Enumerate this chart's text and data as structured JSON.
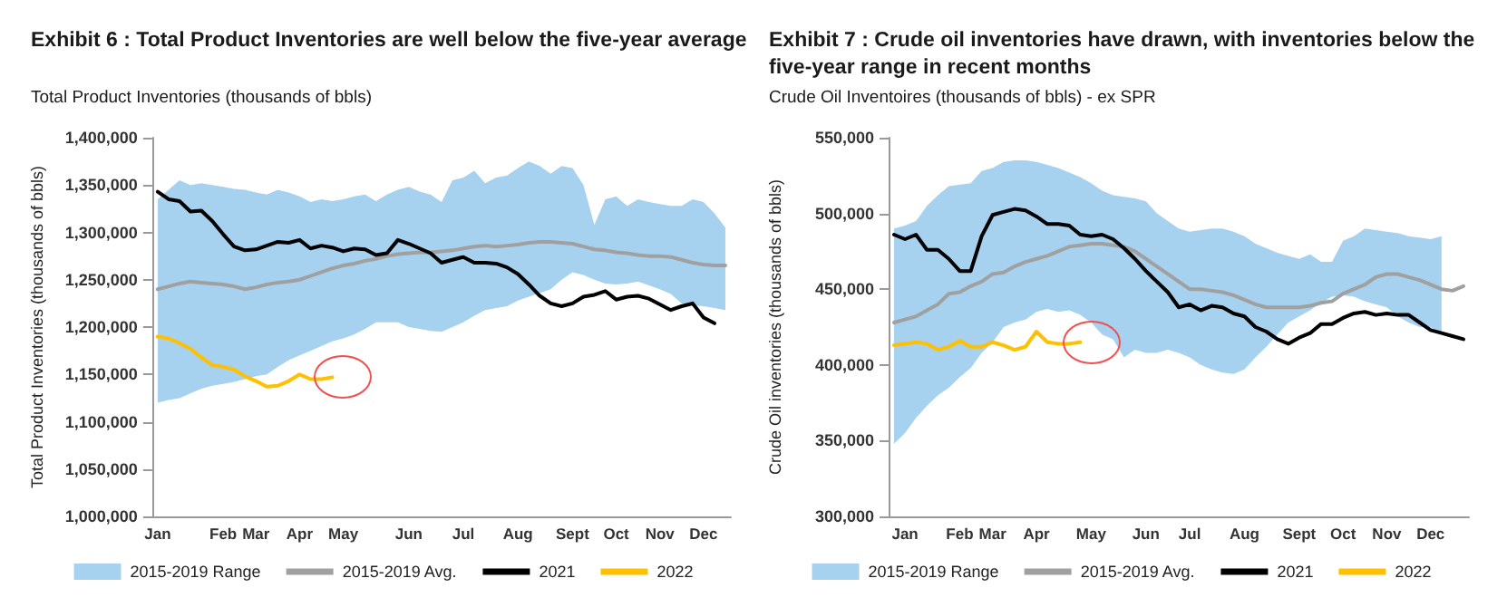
{
  "chart_data": [
    {
      "type": "line",
      "title": "Exhibit 6 : Total Product Inventories are well below the five-year average",
      "subtitle": "Total Product Inventories (thousands of bbls)",
      "ylabel": "Total Product Inventories (thousands of bbls)",
      "categories": [
        "Jan",
        null,
        null,
        null,
        null,
        null,
        "Feb",
        null,
        null,
        "Mar",
        null,
        null,
        null,
        "Apr",
        null,
        null,
        null,
        "May",
        null,
        null,
        null,
        null,
        null,
        "Jun",
        null,
        null,
        null,
        null,
        "Jul",
        null,
        null,
        null,
        null,
        "Aug",
        null,
        null,
        null,
        null,
        "Sept",
        null,
        null,
        null,
        "Oct",
        null,
        null,
        null,
        "Nov",
        null,
        null,
        null,
        "Dec",
        null,
        null
      ],
      "ylim": [
        1000000,
        1400000
      ],
      "yticks": [
        {
          "value": 1000000,
          "label": "1,000,000"
        },
        {
          "value": 1050000,
          "label": "1,050,000"
        },
        {
          "value": 1100000,
          "label": "1,100,000"
        },
        {
          "value": 1150000,
          "label": "1,150,000"
        },
        {
          "value": 1200000,
          "label": "1,200,000"
        },
        {
          "value": 1250000,
          "label": "1,250,000"
        },
        {
          "value": 1300000,
          "label": "1,300,000"
        },
        {
          "value": 1350000,
          "label": "1,350,000"
        },
        {
          "value": 1400000,
          "label": "1,400,000"
        }
      ],
      "grid": false,
      "legend": "bottom",
      "marker": "none",
      "line_style": "solid",
      "series": [
        {
          "name": "2015-2019 Range",
          "type": "area",
          "color": "#a6d2f0",
          "values": [
            null,
            null,
            null,
            null,
            null,
            null,
            null,
            null,
            null,
            null,
            null,
            null,
            null,
            null,
            null,
            null,
            null,
            null,
            null,
            null,
            null,
            null,
            null,
            null,
            null,
            null,
            null,
            null,
            null,
            null,
            null,
            null,
            null,
            null,
            null,
            null,
            null,
            null,
            null,
            null,
            null,
            null,
            null,
            null,
            null,
            null,
            null,
            null,
            null,
            null,
            null,
            null,
            null
          ],
          "lower": [
            1120000,
            1123000,
            1125000,
            1130000,
            1135000,
            1138000,
            1140000,
            1142000,
            1145000,
            1148000,
            1150000,
            1158000,
            1165000,
            1170000,
            1175000,
            1180000,
            1185000,
            1188000,
            1192000,
            1198000,
            1205000,
            1205000,
            1205000,
            1200000,
            1198000,
            1196000,
            1195000,
            1200000,
            1205000,
            1212000,
            1218000,
            1220000,
            1222000,
            1228000,
            1232000,
            1236000,
            1240000,
            1250000,
            1258000,
            1255000,
            1250000,
            1246000,
            1245000,
            1246000,
            1248000,
            1244000,
            1240000,
            1235000,
            1225000,
            1223000,
            1222000,
            1220000,
            1218000
          ],
          "upper": [
            1335000,
            1345000,
            1355000,
            1350000,
            1352000,
            1350000,
            1348000,
            1346000,
            1345000,
            1342000,
            1340000,
            1345000,
            1342000,
            1338000,
            1332000,
            1335000,
            1333000,
            1335000,
            1338000,
            1340000,
            1333000,
            1340000,
            1345000,
            1348000,
            1343000,
            1340000,
            1332000,
            1355000,
            1358000,
            1365000,
            1352000,
            1358000,
            1360000,
            1368000,
            1375000,
            1370000,
            1362000,
            1370000,
            1368000,
            1350000,
            1308000,
            1335000,
            1338000,
            1328000,
            1335000,
            1332000,
            1330000,
            1328000,
            1328000,
            1335000,
            1332000,
            1320000,
            1305000
          ]
        },
        {
          "name": "2015-2019 Avg.",
          "color": "#a0a0a0",
          "values": [
            1240000,
            1243000,
            1246000,
            1248000,
            1247000,
            1246000,
            1245000,
            1243000,
            1240000,
            1242000,
            1245000,
            1247000,
            1248000,
            1250000,
            1254000,
            1258000,
            1262000,
            1265000,
            1267000,
            1270000,
            1272000,
            1275000,
            1277000,
            1278000,
            1279000,
            1279000,
            1280000,
            1281000,
            1283000,
            1285000,
            1286000,
            1285000,
            1286000,
            1287000,
            1289000,
            1290000,
            1290000,
            1289000,
            1288000,
            1285000,
            1282000,
            1281000,
            1279000,
            1278000,
            1276000,
            1275000,
            1275000,
            1274000,
            1271000,
            1268000,
            1266000,
            1265000,
            1265000
          ]
        },
        {
          "name": "2021",
          "color": "#000000",
          "values": [
            1343000,
            1335000,
            1333000,
            1322000,
            1323000,
            1312000,
            1298000,
            1285000,
            1281000,
            1282000,
            1286000,
            1290000,
            1289000,
            1292000,
            1283000,
            1286000,
            1284000,
            1280000,
            1283000,
            1282000,
            1276000,
            1278000,
            1292000,
            1288000,
            1283000,
            1278000,
            1268000,
            1271000,
            1274000,
            1268000,
            1268000,
            1267000,
            1263000,
            1256000,
            1245000,
            1233000,
            1225000,
            1222000,
            1225000,
            1232000,
            1234000,
            1238000,
            1229000,
            1232000,
            1233000,
            1230000,
            1224000,
            1218000,
            1222000,
            1225000,
            1210000,
            1204000,
            null
          ]
        },
        {
          "name": "2022",
          "color": "#ffc000",
          "values": [
            1190000,
            1188000,
            1183000,
            1177000,
            1168000,
            1160000,
            1158000,
            1155000,
            1148000,
            1143000,
            1137000,
            1138000,
            1143000,
            1150000,
            1145000,
            1145000,
            1147000,
            null,
            null,
            null,
            null,
            null,
            null,
            null,
            null,
            null,
            null,
            null,
            null,
            null,
            null,
            null,
            null,
            null,
            null,
            null,
            null,
            null,
            null,
            null,
            null,
            null,
            null,
            null,
            null,
            null,
            null,
            null,
            null,
            null,
            null,
            null,
            null
          ]
        }
      ]
    },
    {
      "type": "line",
      "title": "Exhibit 7 : Crude oil inventories have drawn, with inventories below the five-year range in recent months",
      "subtitle": "Crude Oil Inventoires (thousands of bbls) - ex SPR",
      "ylabel": "Crude Oil inventories (thousands of bbls)",
      "categories": [
        null,
        "Jan",
        null,
        null,
        null,
        null,
        "Feb",
        null,
        null,
        "Mar",
        null,
        null,
        null,
        "Apr",
        null,
        null,
        null,
        null,
        "May",
        null,
        null,
        null,
        null,
        "Jun",
        null,
        null,
        null,
        "Jul",
        null,
        null,
        null,
        null,
        "Aug",
        null,
        null,
        null,
        null,
        "Sept",
        null,
        null,
        null,
        "Oct",
        null,
        null,
        null,
        "Nov",
        null,
        null,
        null,
        "Dec",
        null,
        null,
        null
      ],
      "ylim": [
        300000,
        550000
      ],
      "yticks": [
        {
          "value": 300000,
          "label": "300,000"
        },
        {
          "value": 350000,
          "label": "350,000"
        },
        {
          "value": 400000,
          "label": "400,000"
        },
        {
          "value": 450000,
          "label": "450,000"
        },
        {
          "value": 500000,
          "label": "500,000"
        },
        {
          "value": 550000,
          "label": "550,000"
        }
      ],
      "grid": false,
      "legend": "bottom",
      "marker": "none",
      "line_style": "solid",
      "series": [
        {
          "name": "2015-2019 Range",
          "type": "area",
          "color": "#a6d2f0",
          "values": [
            null,
            null,
            null,
            null,
            null,
            null,
            null,
            null,
            null,
            null,
            null,
            null,
            null,
            null,
            null,
            null,
            null,
            null,
            null,
            null,
            null,
            null,
            null,
            null,
            null,
            null,
            null,
            null,
            null,
            null,
            null,
            null,
            null,
            null,
            null,
            null,
            null,
            null,
            null,
            null,
            null,
            null,
            null,
            null,
            null,
            null,
            null,
            null,
            null,
            null,
            null,
            null,
            null
          ],
          "lower": [
            348000,
            355000,
            365000,
            373000,
            380000,
            385000,
            392000,
            398000,
            408000,
            415000,
            425000,
            428000,
            430000,
            435000,
            437000,
            435000,
            436000,
            433000,
            428000,
            420000,
            417000,
            405000,
            410000,
            408000,
            408000,
            410000,
            408000,
            405000,
            400000,
            397000,
            395000,
            394000,
            397000,
            405000,
            412000,
            420000,
            428000,
            432000,
            436000,
            441000,
            445000,
            446000,
            445000,
            442000,
            440000,
            438000,
            432000,
            428000,
            425000,
            425000,
            420000,
            null,
            null
          ],
          "upper": [
            490000,
            492000,
            495000,
            505000,
            512000,
            518000,
            519000,
            520000,
            528000,
            530000,
            534000,
            535000,
            535000,
            534000,
            532000,
            530000,
            527000,
            524000,
            520000,
            515000,
            512000,
            511000,
            510000,
            508000,
            500000,
            495000,
            490000,
            488000,
            489000,
            490000,
            490000,
            488000,
            485000,
            480000,
            477000,
            474000,
            472000,
            470000,
            473000,
            468000,
            468000,
            482000,
            485000,
            490000,
            489000,
            488000,
            487000,
            485000,
            484000,
            483000,
            485000,
            null,
            null
          ]
        },
        {
          "name": "2015-2019 Avg.",
          "color": "#a0a0a0",
          "values": [
            428000,
            430000,
            432000,
            436000,
            440000,
            447000,
            448000,
            452000,
            455000,
            460000,
            461000,
            465000,
            468000,
            470000,
            472000,
            475000,
            478000,
            479000,
            480000,
            480000,
            479000,
            478000,
            475000,
            470000,
            465000,
            460000,
            455000,
            450000,
            450000,
            449000,
            448000,
            446000,
            443000,
            440000,
            438000,
            438000,
            438000,
            438000,
            439000,
            441000,
            442000,
            447000,
            450000,
            453000,
            458000,
            460000,
            460000,
            458000,
            456000,
            453000,
            450000,
            449000,
            452000
          ]
        },
        {
          "name": "2021",
          "color": "#000000",
          "values": [
            486000,
            483000,
            486000,
            476000,
            476000,
            470000,
            462000,
            462000,
            485000,
            499000,
            501000,
            503000,
            502000,
            498000,
            493000,
            493000,
            492000,
            486000,
            485000,
            486000,
            483000,
            477000,
            470000,
            462000,
            455000,
            448000,
            438000,
            440000,
            436000,
            439000,
            438000,
            434000,
            432000,
            425000,
            422000,
            417000,
            414000,
            418000,
            421000,
            427000,
            427000,
            431000,
            434000,
            435000,
            433000,
            434000,
            433000,
            433000,
            428000,
            423000,
            421000,
            419000,
            417000
          ]
        },
        {
          "name": "2022",
          "color": "#ffc000",
          "values": [
            413000,
            414000,
            415000,
            414000,
            410000,
            412000,
            416000,
            412000,
            412000,
            415000,
            413000,
            410000,
            412000,
            422000,
            415000,
            414000,
            414000,
            415000,
            null,
            null,
            null,
            null,
            null,
            null,
            null,
            null,
            null,
            null,
            null,
            null,
            null,
            null,
            null,
            null,
            null,
            null,
            null,
            null,
            null,
            null,
            null,
            null,
            null,
            null,
            null,
            null,
            null,
            null,
            null,
            null,
            null,
            null,
            null
          ]
        }
      ]
    }
  ]
}
